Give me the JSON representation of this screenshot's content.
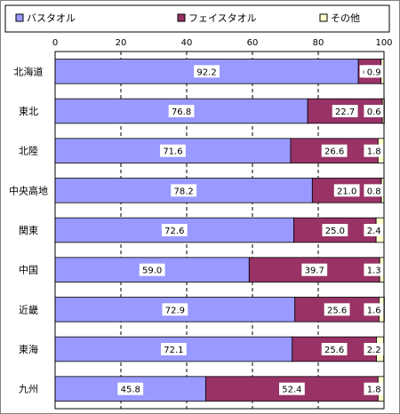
{
  "chart_data": {
    "type": "bar",
    "orientation": "horizontal",
    "stacked": true,
    "title": "",
    "xlabel": "",
    "ylabel": "",
    "xlim": [
      0,
      100
    ],
    "x_ticks": [
      "0",
      "20",
      "40",
      "60",
      "80",
      "100"
    ],
    "grid": true,
    "legend_position": "top",
    "categories": [
      "北海道",
      "東北",
      "北陸",
      "中央高地",
      "関東",
      "中国",
      "近畿",
      "東海",
      "九州"
    ],
    "series": [
      {
        "name": "バスタオル",
        "color": "#9999ff",
        "values": [
          92.2,
          76.8,
          71.6,
          78.2,
          72.6,
          59.0,
          72.9,
          72.1,
          45.8
        ]
      },
      {
        "name": "フェイスタオル",
        "color": "#993366",
        "values": [
          6.9,
          22.7,
          26.6,
          21.0,
          25.0,
          39.7,
          25.6,
          25.6,
          52.4
        ]
      },
      {
        "name": "その他",
        "color": "#ffffcc",
        "values": [
          0.9,
          0.6,
          1.8,
          0.8,
          2.4,
          1.3,
          1.6,
          2.2,
          1.8
        ]
      }
    ],
    "labels": [
      [
        "92.2",
        "6.9",
        "0.9"
      ],
      [
        "76.8",
        "22.7",
        "0.6"
      ],
      [
        "71.6",
        "26.6",
        "1.8"
      ],
      [
        "78.2",
        "21.0",
        "0.8"
      ],
      [
        "72.6",
        "25.0",
        "2.4"
      ],
      [
        "59.0",
        "39.7",
        "1.3"
      ],
      [
        "72.9",
        "25.6",
        "1.6"
      ],
      [
        "72.1",
        "25.6",
        "2.2"
      ],
      [
        "45.8",
        "52.4",
        "1.8"
      ]
    ]
  }
}
